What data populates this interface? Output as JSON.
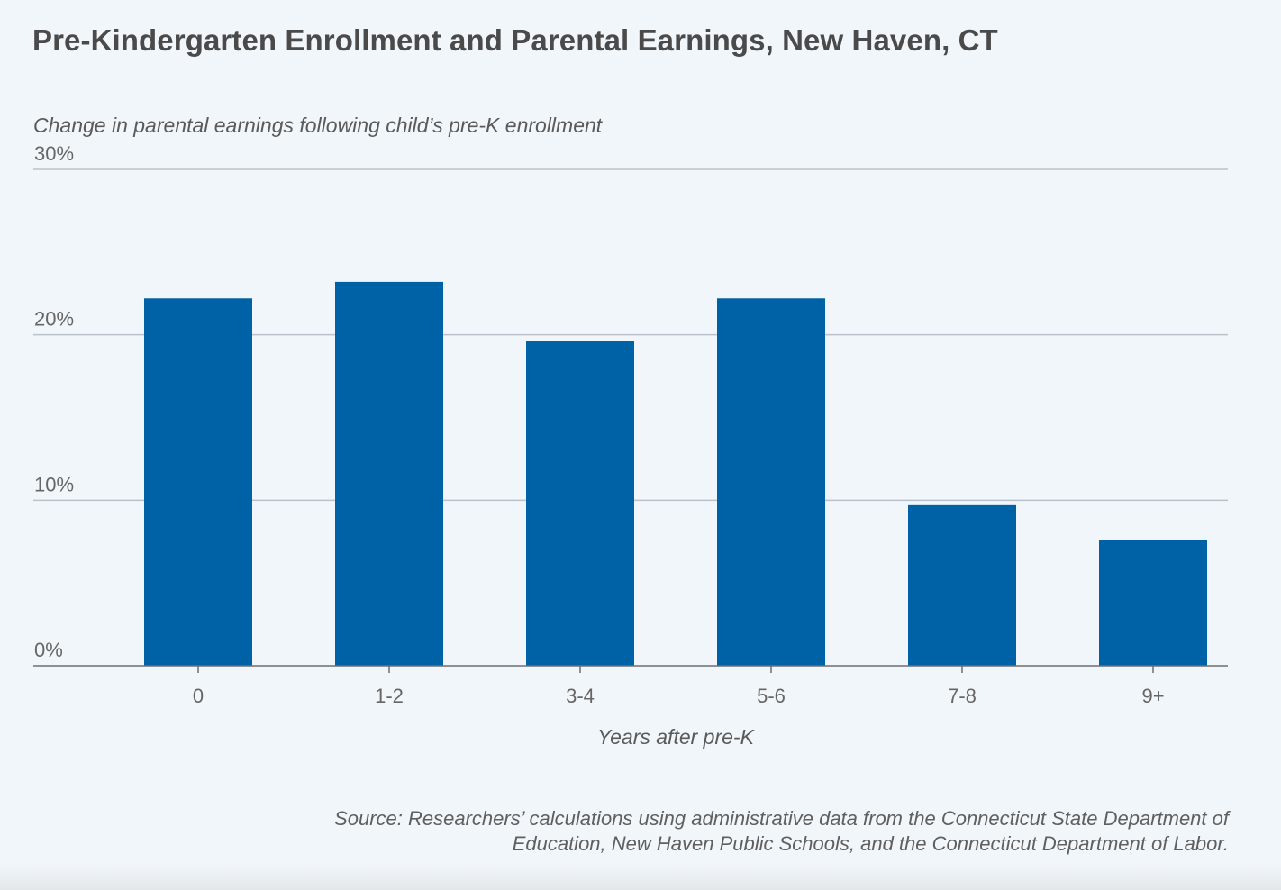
{
  "chart_data": {
    "type": "bar",
    "title": "Pre-Kindergarten Enrollment and Parental Earnings, New Haven, CT",
    "subtitle": "Change in parental earnings following child’s pre-K enrollment",
    "xlabel": "Years after pre-K",
    "ylabel": "",
    "categories": [
      "0",
      "1-2",
      "3-4",
      "5-6",
      "7-8",
      "9+"
    ],
    "values": [
      22.2,
      23.2,
      19.6,
      22.2,
      9.7,
      7.6
    ],
    "ylim": [
      0,
      30
    ],
    "yticks": [
      0,
      10,
      20,
      30
    ],
    "ytick_labels": [
      "0%",
      "10%",
      "20%",
      "30%"
    ],
    "grid": true,
    "bar_color": "#0062a6",
    "source": "Source: Researchers’ calculations using administrative data from the Connecticut State Department of Education, New Haven Public Schools, and the Connecticut Department of Labor."
  }
}
